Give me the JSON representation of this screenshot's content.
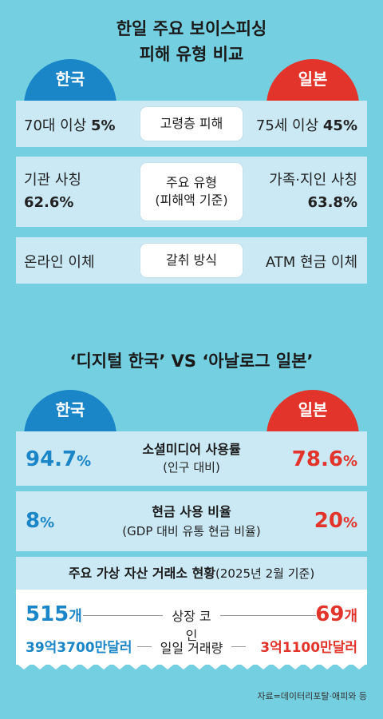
{
  "title1": {
    "line1": "한일 주요 보이스피싱",
    "line2": "피해 유형 비교"
  },
  "labels": {
    "korea": "한국",
    "japan": "일본"
  },
  "rows1": [
    {
      "kr": "70대 이상 ",
      "kr_bold": "5%",
      "center": "고령층 피해",
      "jp": "75세 이상 ",
      "jp_bold": "45%"
    },
    {
      "kr": "기관 사칭",
      "kr_bold": "62.6%",
      "center1": "주요 유형",
      "center2": "(피해액 기준)",
      "jp": "가족·지인 사칭",
      "jp_bold": "63.8%"
    },
    {
      "kr": "온라인 이체",
      "center": "갈취 방식",
      "jp": "ATM 현금 이체"
    }
  ],
  "title2": "‘디지털 한국’ VS ‘아날로그 일본’",
  "rows2": [
    {
      "kr": "94.7",
      "kr_unit": "%",
      "title": "소셜미디어 사용률",
      "sub": "(인구 대비)",
      "jp": "78.6",
      "jp_unit": "%"
    },
    {
      "kr": "8",
      "kr_unit": "%",
      "title": "현금 사용 비율",
      "sub": "(GDP 대비 유통 현금 비율)",
      "jp": "20",
      "jp_unit": "%"
    }
  ],
  "exchange": {
    "title": "주요 가상 자산 거래소 현황",
    "date": "(2025년 2월 기준)",
    "row1": {
      "kr": "515",
      "kr_unit": "개",
      "label": "상장 코인",
      "jp": "69",
      "jp_unit": "개"
    },
    "row2": {
      "kr": "39억3700만달러",
      "label": "일일 거래량",
      "jp": "3억1100만달러"
    }
  },
  "source": "자료=데이터리포탈·애피와 등",
  "colors": {
    "background": "#74cfe0",
    "korea": "#1a86c8",
    "japan": "#e2342b",
    "band": "#cbe9f4"
  }
}
